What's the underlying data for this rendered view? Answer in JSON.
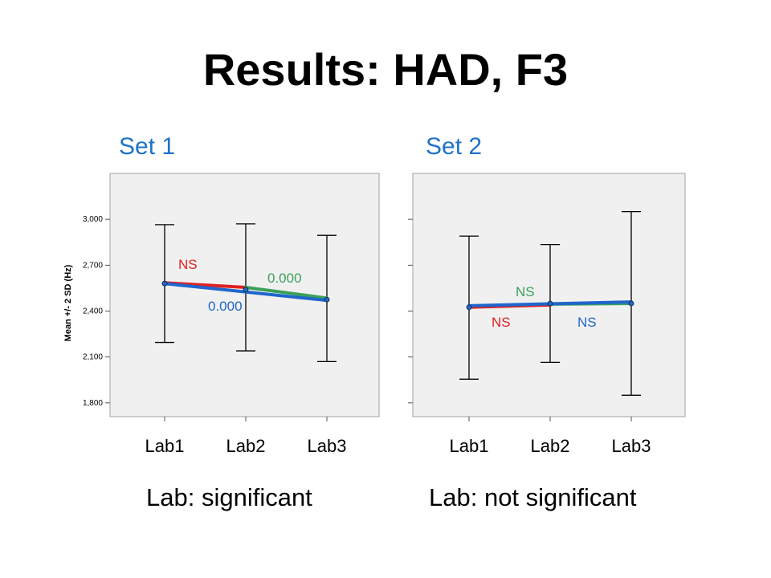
{
  "title": "Results: HAD, F3",
  "chart_data": [
    {
      "type": "line",
      "set_label": "Set 1",
      "caption": "Lab: significant",
      "categories": [
        "Lab1",
        "Lab2",
        "Lab3"
      ],
      "ylabel": "Mean +/- 2 SD (Hz)",
      "yticks": [
        "1,800",
        "2,100",
        "2,400",
        "2,700",
        "3,000"
      ],
      "ytick_values": [
        1800,
        2100,
        2400,
        2700,
        3000
      ],
      "ylim": [
        1710,
        3300
      ],
      "means": [
        2580,
        2540,
        2475
      ],
      "error_bars": [
        {
          "low": 2195,
          "high": 2965
        },
        {
          "low": 2140,
          "high": 2970
        },
        {
          "low": 2070,
          "high": 2895
        }
      ],
      "comparisons": [
        {
          "from": 0,
          "to": 1,
          "y": [
            2585,
            2555
          ],
          "color": "#e02020",
          "label": "NS"
        },
        {
          "from": 1,
          "to": 2,
          "y": [
            2555,
            2485
          ],
          "color": "#3aa05a",
          "label": "0.000"
        },
        {
          "from": 0,
          "to": 2,
          "y": [
            2580,
            2470
          ],
          "color": "#1f66cc",
          "label": "0.000"
        }
      ],
      "colors": {
        "background": "#f0f0f0",
        "red": "#e02020",
        "green": "#3aa05a",
        "blue": "#1f66cc"
      }
    },
    {
      "type": "line",
      "set_label": "Set 2",
      "caption": "Lab: not significant",
      "categories": [
        "Lab1",
        "Lab2",
        "Lab3"
      ],
      "ylabel": "",
      "yticks": [],
      "ytick_values": [
        1800,
        2100,
        2400,
        2700,
        3000
      ],
      "ylim": [
        1710,
        3300
      ],
      "means": [
        2425,
        2450,
        2450
      ],
      "error_bars": [
        {
          "low": 1955,
          "high": 2890
        },
        {
          "low": 2065,
          "high": 2835
        },
        {
          "low": 1850,
          "high": 3050
        }
      ],
      "comparisons": [
        {
          "from": 0,
          "to": 1,
          "y": [
            2425,
            2440
          ],
          "color": "#e02020",
          "label": "NS"
        },
        {
          "from": 1,
          "to": 2,
          "y": [
            2445,
            2450
          ],
          "color": "#3aa05a",
          "label": "NS"
        },
        {
          "from": 0,
          "to": 2,
          "y": [
            2435,
            2460
          ],
          "color": "#1f66cc",
          "label": "NS"
        }
      ],
      "colors": {
        "background": "#f0f0f0",
        "red": "#e02020",
        "green": "#3aa05a",
        "blue": "#1f66cc"
      }
    }
  ]
}
